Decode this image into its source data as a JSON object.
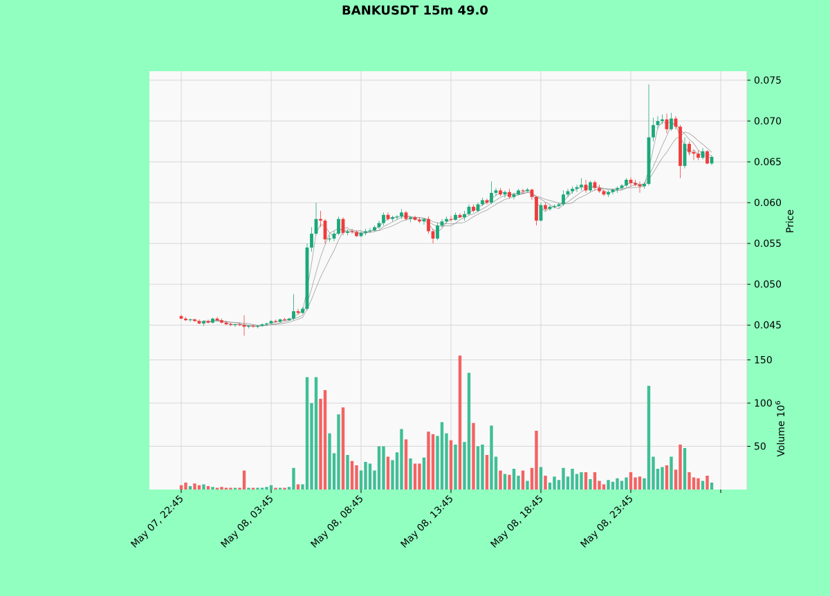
{
  "chart_data": {
    "type": "candlestick",
    "title": "BANKUSDT 15m 49.0",
    "price_axis": {
      "label": "Price",
      "lim": [
        0.0418,
        0.0761
      ],
      "ticks": [
        "0.045",
        "0.050",
        "0.055",
        "0.060",
        "0.065",
        "0.070",
        "0.075"
      ]
    },
    "volume_axis": {
      "label": "Volume",
      "unit_label": "10",
      "unit_exponent": "6",
      "lim": [
        0,
        160
      ],
      "ticks": [
        "50",
        "100",
        "150"
      ]
    },
    "x_tick_labels": [
      "May 07, 22:45",
      "May 08, 03:45",
      "May 08, 08:45",
      "May 08, 13:45",
      "May 08, 18:45",
      "May 08, 23:45"
    ],
    "x_tick_index": [
      0,
      20,
      40,
      60,
      80,
      100
    ],
    "grid": true,
    "colors": {
      "up": "#1aa87a",
      "down": "#ef3c3c",
      "vol_up": "#3fbf96",
      "vol_down": "#f26363",
      "ma": "#8a8a8a",
      "background": "#91ffc0",
      "plot": "#f9f9f9"
    },
    "candles": [
      [
        0.0461,
        0.0463,
        0.0457,
        0.0458,
        5
      ],
      [
        0.0458,
        0.046,
        0.0455,
        0.0456,
        8
      ],
      [
        0.0456,
        0.0458,
        0.0454,
        0.0457,
        4
      ],
      [
        0.0457,
        0.0458,
        0.0454,
        0.0455,
        7
      ],
      [
        0.0455,
        0.0457,
        0.0451,
        0.0452,
        5
      ],
      [
        0.0452,
        0.0456,
        0.0449,
        0.0455,
        6
      ],
      [
        0.0455,
        0.0457,
        0.0452,
        0.0453,
        4
      ],
      [
        0.0453,
        0.0459,
        0.0452,
        0.0458,
        3
      ],
      [
        0.0458,
        0.046,
        0.0455,
        0.0456,
        2
      ],
      [
        0.0456,
        0.0458,
        0.0452,
        0.0453,
        3
      ],
      [
        0.0453,
        0.0455,
        0.045,
        0.0451,
        2
      ],
      [
        0.0451,
        0.0453,
        0.0449,
        0.045,
        2
      ],
      [
        0.045,
        0.0452,
        0.0448,
        0.0451,
        2
      ],
      [
        0.0451,
        0.0453,
        0.0449,
        0.045,
        2
      ],
      [
        0.045,
        0.0462,
        0.0437,
        0.0448,
        22
      ],
      [
        0.0448,
        0.045,
        0.0446,
        0.0449,
        2
      ],
      [
        0.0449,
        0.0451,
        0.0447,
        0.0448,
        2
      ],
      [
        0.0448,
        0.045,
        0.0446,
        0.0449,
        2
      ],
      [
        0.0449,
        0.0452,
        0.0448,
        0.0451,
        2
      ],
      [
        0.0451,
        0.0453,
        0.0449,
        0.0452,
        3
      ],
      [
        0.0452,
        0.0456,
        0.0451,
        0.0455,
        5
      ],
      [
        0.0455,
        0.0457,
        0.0453,
        0.0454,
        2
      ],
      [
        0.0454,
        0.0458,
        0.0453,
        0.0457,
        2
      ],
      [
        0.0457,
        0.0459,
        0.0455,
        0.0456,
        2
      ],
      [
        0.0456,
        0.0459,
        0.0455,
        0.0458,
        3
      ],
      [
        0.0458,
        0.0488,
        0.0456,
        0.0467,
        25
      ],
      [
        0.0467,
        0.047,
        0.0463,
        0.0465,
        6
      ],
      [
        0.0465,
        0.0472,
        0.0464,
        0.047,
        6
      ],
      [
        0.047,
        0.055,
        0.0468,
        0.0545,
        130
      ],
      [
        0.0545,
        0.057,
        0.054,
        0.0562,
        100
      ],
      [
        0.0562,
        0.06,
        0.056,
        0.058,
        130
      ],
      [
        0.058,
        0.059,
        0.057,
        0.0578,
        105
      ],
      [
        0.0578,
        0.058,
        0.055,
        0.0555,
        115
      ],
      [
        0.0555,
        0.056,
        0.0552,
        0.0556,
        65
      ],
      [
        0.0556,
        0.0565,
        0.0553,
        0.0562,
        42
      ],
      [
        0.0562,
        0.0583,
        0.056,
        0.058,
        87
      ],
      [
        0.058,
        0.0582,
        0.056,
        0.0563,
        95
      ],
      [
        0.0563,
        0.0567,
        0.056,
        0.0565,
        40
      ],
      [
        0.0565,
        0.0568,
        0.0562,
        0.0564,
        33
      ],
      [
        0.0564,
        0.0566,
        0.0558,
        0.0559,
        28
      ],
      [
        0.0559,
        0.0565,
        0.0558,
        0.0563,
        22
      ],
      [
        0.0563,
        0.0568,
        0.056,
        0.0565,
        32
      ],
      [
        0.0565,
        0.0569,
        0.0563,
        0.0566,
        30
      ],
      [
        0.0566,
        0.0572,
        0.0565,
        0.057,
        22
      ],
      [
        0.057,
        0.0578,
        0.0568,
        0.0575,
        50
      ],
      [
        0.0575,
        0.0588,
        0.0572,
        0.0585,
        50
      ],
      [
        0.0585,
        0.0588,
        0.0578,
        0.058,
        38
      ],
      [
        0.058,
        0.0584,
        0.0577,
        0.0582,
        34
      ],
      [
        0.0582,
        0.0585,
        0.0579,
        0.0583,
        43
      ],
      [
        0.0583,
        0.0592,
        0.058,
        0.0588,
        70
      ],
      [
        0.0588,
        0.059,
        0.0578,
        0.058,
        58
      ],
      [
        0.058,
        0.0583,
        0.0576,
        0.0582,
        36
      ],
      [
        0.0582,
        0.0584,
        0.0578,
        0.0579,
        30
      ],
      [
        0.0579,
        0.0582,
        0.0575,
        0.0577,
        30
      ],
      [
        0.0577,
        0.0581,
        0.0573,
        0.058,
        37
      ],
      [
        0.058,
        0.0583,
        0.0562,
        0.0565,
        67
      ],
      [
        0.0565,
        0.0568,
        0.055,
        0.0556,
        64
      ],
      [
        0.0556,
        0.0575,
        0.0554,
        0.0572,
        62
      ],
      [
        0.0572,
        0.058,
        0.057,
        0.0577,
        78
      ],
      [
        0.0577,
        0.0583,
        0.0575,
        0.058,
        65
      ],
      [
        0.058,
        0.0584,
        0.0577,
        0.0579,
        57
      ],
      [
        0.0579,
        0.0588,
        0.0578,
        0.0585,
        52
      ],
      [
        0.0585,
        0.0587,
        0.0581,
        0.0582,
        155
      ],
      [
        0.0582,
        0.059,
        0.0578,
        0.0586,
        55
      ],
      [
        0.0586,
        0.0598,
        0.0585,
        0.0595,
        135
      ],
      [
        0.0595,
        0.0598,
        0.0588,
        0.059,
        77
      ],
      [
        0.059,
        0.06,
        0.0588,
        0.0598,
        50
      ],
      [
        0.0598,
        0.0606,
        0.0596,
        0.0603,
        52
      ],
      [
        0.0603,
        0.0605,
        0.0598,
        0.06,
        40
      ],
      [
        0.06,
        0.0626,
        0.0598,
        0.0612,
        74
      ],
      [
        0.0612,
        0.0618,
        0.0608,
        0.0615,
        38
      ],
      [
        0.0615,
        0.0618,
        0.0608,
        0.061,
        22
      ],
      [
        0.061,
        0.0615,
        0.0606,
        0.0613,
        18
      ],
      [
        0.0613,
        0.0617,
        0.0605,
        0.0607,
        17
      ],
      [
        0.0607,
        0.0612,
        0.0604,
        0.061,
        24
      ],
      [
        0.061,
        0.0617,
        0.0609,
        0.0615,
        16
      ],
      [
        0.0615,
        0.0617,
        0.0611,
        0.0614,
        22
      ],
      [
        0.0614,
        0.0618,
        0.0613,
        0.0616,
        10
      ],
      [
        0.0616,
        0.0617,
        0.0603,
        0.0607,
        25
      ],
      [
        0.0607,
        0.0608,
        0.0572,
        0.0578,
        68
      ],
      [
        0.0578,
        0.06,
        0.0577,
        0.0597,
        26
      ],
      [
        0.0597,
        0.06,
        0.059,
        0.0592,
        16
      ],
      [
        0.0592,
        0.0597,
        0.059,
        0.0595,
        8
      ],
      [
        0.0595,
        0.0598,
        0.0593,
        0.0596,
        15
      ],
      [
        0.0596,
        0.06,
        0.0594,
        0.0598,
        11
      ],
      [
        0.0598,
        0.0615,
        0.0596,
        0.061,
        25
      ],
      [
        0.061,
        0.0617,
        0.0607,
        0.0614,
        15
      ],
      [
        0.0614,
        0.062,
        0.0611,
        0.0617,
        24
      ],
      [
        0.0617,
        0.0622,
        0.0613,
        0.0619,
        18
      ],
      [
        0.0619,
        0.063,
        0.0615,
        0.0622,
        20
      ],
      [
        0.0622,
        0.0628,
        0.0612,
        0.0615,
        20
      ],
      [
        0.0615,
        0.0627,
        0.0613,
        0.0625,
        12
      ],
      [
        0.0625,
        0.0627,
        0.0615,
        0.0618,
        20
      ],
      [
        0.0618,
        0.0622,
        0.0612,
        0.0614,
        10
      ],
      [
        0.0614,
        0.0616,
        0.0608,
        0.061,
        6
      ],
      [
        0.061,
        0.0615,
        0.0607,
        0.0613,
        11
      ],
      [
        0.0613,
        0.0617,
        0.061,
        0.0616,
        9
      ],
      [
        0.0616,
        0.062,
        0.0612,
        0.0618,
        13
      ],
      [
        0.0618,
        0.0623,
        0.0616,
        0.0621,
        10
      ],
      [
        0.0621,
        0.063,
        0.0619,
        0.0628,
        14
      ],
      [
        0.0628,
        0.0631,
        0.062,
        0.0624,
        20
      ],
      [
        0.0624,
        0.0628,
        0.062,
        0.0622,
        14
      ],
      [
        0.0622,
        0.0626,
        0.0612,
        0.062,
        15
      ],
      [
        0.062,
        0.0625,
        0.0617,
        0.0623,
        13
      ],
      [
        0.0623,
        0.0745,
        0.0621,
        0.068,
        120
      ],
      [
        0.068,
        0.0704,
        0.0675,
        0.0695,
        38
      ],
      [
        0.0695,
        0.0706,
        0.069,
        0.07,
        24
      ],
      [
        0.07,
        0.0708,
        0.0696,
        0.0702,
        26
      ],
      [
        0.0702,
        0.0709,
        0.0685,
        0.069,
        28
      ],
      [
        0.069,
        0.071,
        0.0688,
        0.0703,
        38
      ],
      [
        0.0703,
        0.0706,
        0.069,
        0.0693,
        23
      ],
      [
        0.0693,
        0.0695,
        0.063,
        0.0645,
        52
      ],
      [
        0.0645,
        0.068,
        0.0642,
        0.0672,
        48
      ],
      [
        0.0672,
        0.0675,
        0.0658,
        0.0662,
        20
      ],
      [
        0.0662,
        0.0665,
        0.0652,
        0.066,
        14
      ],
      [
        0.066,
        0.0664,
        0.0652,
        0.0655,
        13
      ],
      [
        0.0655,
        0.0667,
        0.0653,
        0.0663,
        10
      ],
      [
        0.0663,
        0.0664,
        0.0647,
        0.0648,
        16
      ],
      [
        0.0648,
        0.0658,
        0.0646,
        0.0656,
        8
      ]
    ]
  }
}
